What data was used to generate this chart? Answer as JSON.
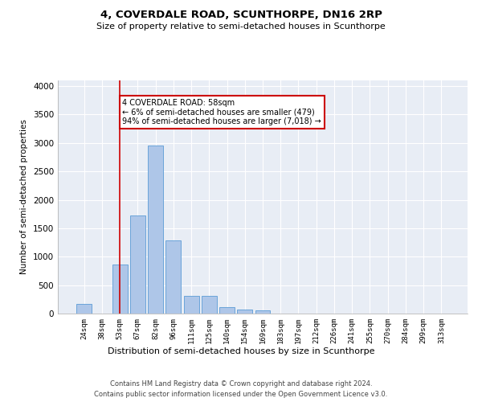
{
  "title": "4, COVERDALE ROAD, SCUNTHORPE, DN16 2RP",
  "subtitle": "Size of property relative to semi-detached houses in Scunthorpe",
  "xlabel": "Distribution of semi-detached houses by size in Scunthorpe",
  "ylabel": "Number of semi-detached properties",
  "footer1": "Contains HM Land Registry data © Crown copyright and database right 2024.",
  "footer2": "Contains public sector information licensed under the Open Government Licence v3.0.",
  "categories": [
    "24sqm",
    "38sqm",
    "53sqm",
    "67sqm",
    "82sqm",
    "96sqm",
    "111sqm",
    "125sqm",
    "140sqm",
    "154sqm",
    "169sqm",
    "183sqm",
    "197sqm",
    "212sqm",
    "226sqm",
    "241sqm",
    "255sqm",
    "270sqm",
    "284sqm",
    "299sqm",
    "313sqm"
  ],
  "values": [
    175,
    0,
    860,
    1730,
    2950,
    1280,
    310,
    310,
    115,
    65,
    55,
    0,
    0,
    0,
    0,
    0,
    0,
    0,
    0,
    0,
    0
  ],
  "bar_color": "#aec6e8",
  "bar_edge_color": "#5b9bd5",
  "grid_color": "#d0d8e8",
  "bg_color": "#e8edf5",
  "annotation_box_color": "#cc0000",
  "property_line_color": "#cc0000",
  "property_bin_index": 2,
  "annotation_title": "4 COVERDALE ROAD: 58sqm",
  "annotation_line1": "← 6% of semi-detached houses are smaller (479)",
  "annotation_line2": "94% of semi-detached houses are larger (7,018) →",
  "ylim": [
    0,
    4100
  ],
  "yticks": [
    0,
    500,
    1000,
    1500,
    2000,
    2500,
    3000,
    3500,
    4000
  ]
}
